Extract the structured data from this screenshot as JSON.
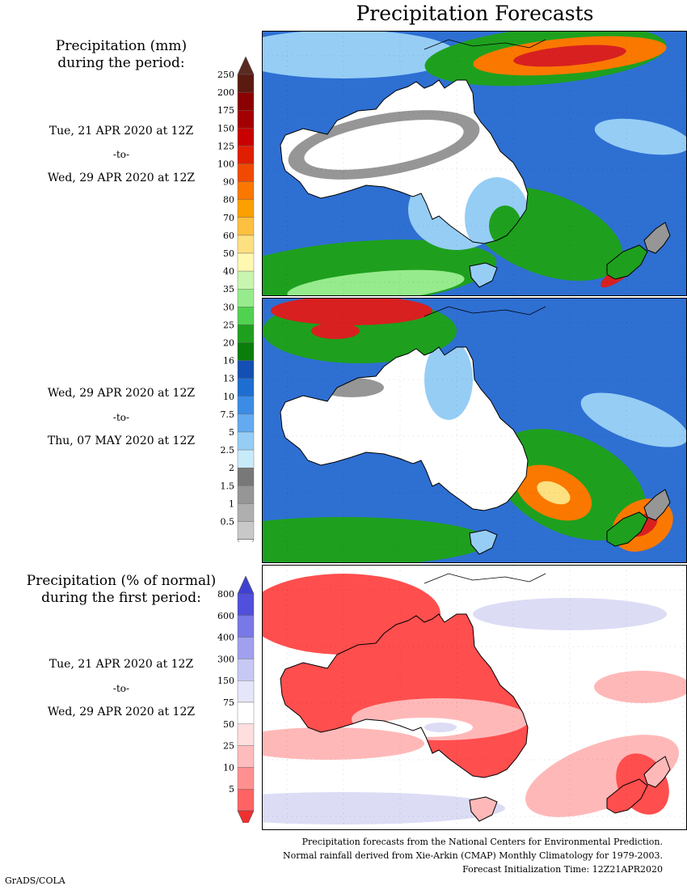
{
  "title": "Precipitation Forecasts",
  "left": {
    "heading_mm": [
      "Precipitation (mm)",
      "during the period:"
    ],
    "period1": {
      "start": "Tue, 21 APR 2020 at 12Z",
      "to": "-to-",
      "end": "Wed, 29 APR 2020 at 12Z"
    },
    "period2": {
      "start": "Wed, 29 APR 2020 at 12Z",
      "to": "-to-",
      "end": "Thu, 07 MAY 2020 at 12Z"
    },
    "heading_pct": [
      "Precipitation (% of normal)",
      "during the first period:"
    ],
    "period3": {
      "start": "Tue, 21 APR 2020 at 12Z",
      "to": "-to-",
      "end": "Wed, 29 APR 2020 at 12Z"
    }
  },
  "colorbar_mm": {
    "labels": [
      "250",
      "200",
      "175",
      "150",
      "125",
      "100",
      "90",
      "80",
      "70",
      "60",
      "50",
      "40",
      "35",
      "30",
      "25",
      "20",
      "16",
      "13",
      "10",
      "7.5",
      "5",
      "2.5",
      "2",
      "1.5",
      "1",
      "0.5"
    ],
    "colors": [
      "#5a1a10",
      "#8b0000",
      "#a50000",
      "#c80000",
      "#e01e00",
      "#f04a00",
      "#fa7800",
      "#fca000",
      "#fdc040",
      "#fde080",
      "#fff8b0",
      "#c8f5b0",
      "#96eb8c",
      "#50d250",
      "#1ea01e",
      "#0a7d0a",
      "#1450b4",
      "#1e6ed2",
      "#3c8ce6",
      "#64aaf0",
      "#96cdf5",
      "#c8ebfa",
      "#787878",
      "#969696",
      "#afafaf",
      "#c8c8c8"
    ],
    "top_color": "#5a2a20"
  },
  "colorbar_pct": {
    "labels": [
      "800",
      "600",
      "400",
      "300",
      "150",
      "75",
      "50",
      "25",
      "10",
      "5"
    ],
    "colors": [
      "#5050dc",
      "#7878e6",
      "#a0a0ee",
      "#c8c8f5",
      "#e6e6fa",
      "#ffffff",
      "#ffdede",
      "#ffbcbc",
      "#ff9090",
      "#ff6464"
    ],
    "top_color": "#4040d0",
    "bottom_color": "#ee3030"
  },
  "footer": [
    "Precipitation forecasts from the National Centers for Environmental Prediction.",
    "Normal rainfall derived from Xie-Arkin (CMAP) Monthly Climatology for 1979-2003.",
    "Forecast Initialization Time: 12Z21APR2020"
  ],
  "credit": "GrADS/COLA",
  "map_colors": {
    "sea": "#2e6fd2",
    "land_dry": "#ffffff",
    "light_blue": "#96cdf5",
    "green": "#1ea01e",
    "light_green": "#96eb8c",
    "gray": "#969696",
    "red": "#d82020",
    "orange": "#fa7800",
    "yellow": "#fde080",
    "pct_red": "#ff4e4e",
    "pct_pink": "#ffb8b8",
    "pct_lav": "#dcdcf5"
  }
}
